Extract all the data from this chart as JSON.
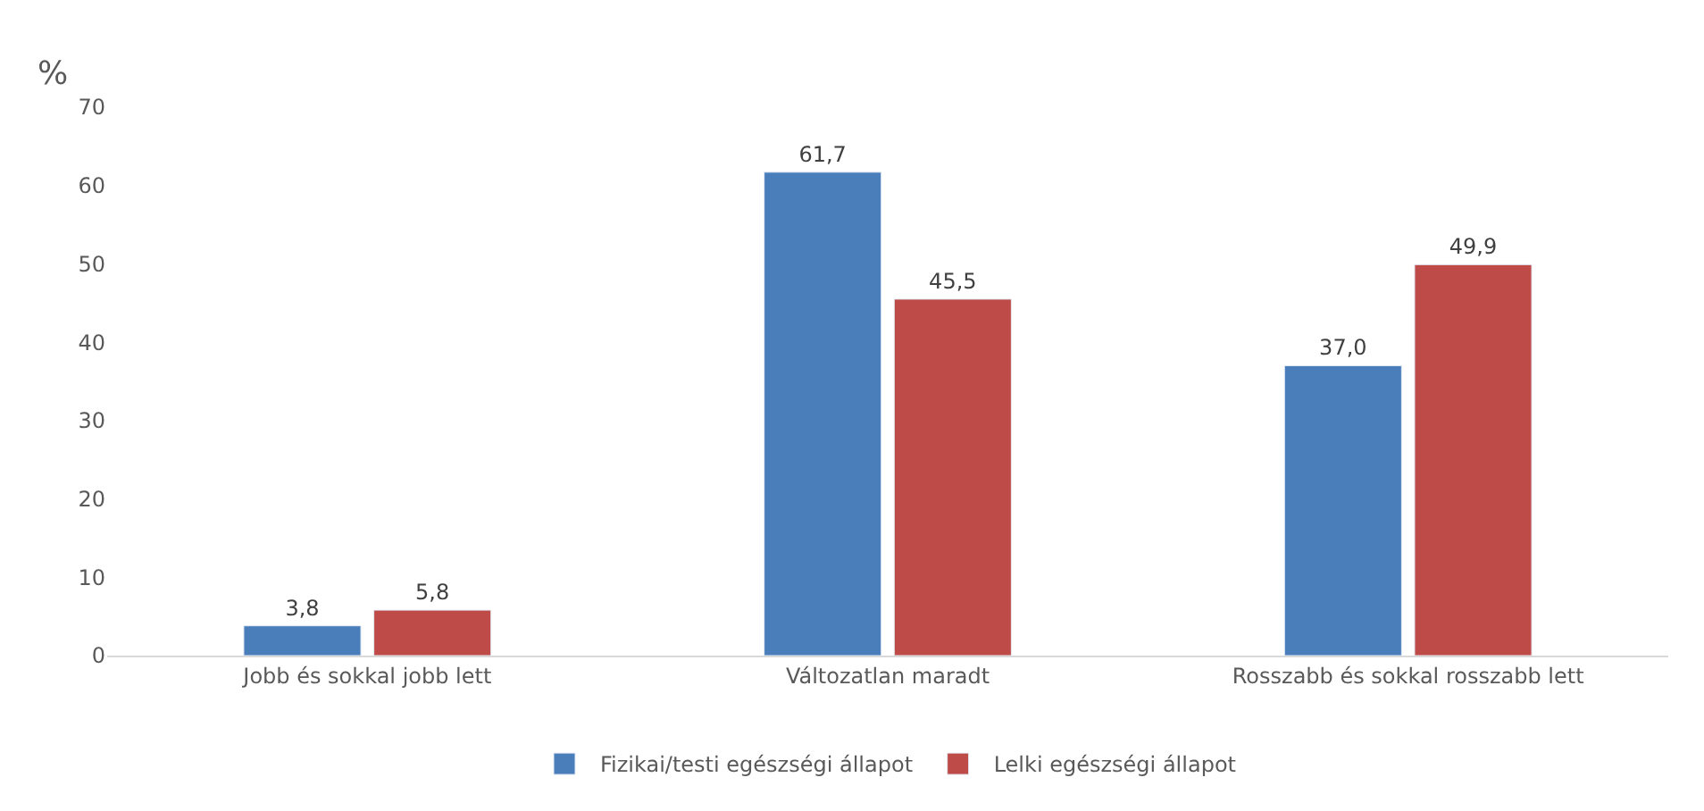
{
  "chart_data": {
    "type": "bar",
    "ylabel": "%",
    "categories": [
      "Jobb és sokkal jobb lett",
      "Változatlan maradt",
      "Rosszabb és sokkal rosszabb lett"
    ],
    "series": [
      {
        "name": "Fizikai/testi egészségi állapot",
        "color": "#4a7ebb",
        "values": [
          3.8,
          61.7,
          37.0
        ],
        "value_labels": [
          "3,8",
          "61,7",
          "37,0"
        ]
      },
      {
        "name": "Lelki egészségi állapot",
        "color": "#be4b48",
        "values": [
          5.8,
          45.5,
          49.9
        ],
        "value_labels": [
          "5,8",
          "45,5",
          "49,9"
        ]
      }
    ],
    "ylim": [
      0,
      70
    ],
    "yticks": [
      0,
      10,
      20,
      30,
      40,
      50,
      60,
      70
    ],
    "grid": false,
    "legend": "bottom"
  }
}
